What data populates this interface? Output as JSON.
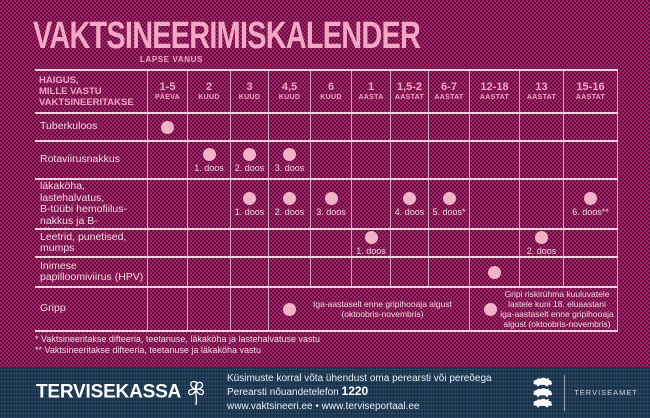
{
  "title": "VAKTSINEERIMISKALENDER",
  "table": {
    "age_axis_label": "LAPSE VANUS",
    "corner_label": "HAIGUS,\nMILLE VASTU\nVAKTSINEERITAKSE",
    "columns": [
      {
        "num": "1-5",
        "unit": "PÄEVA"
      },
      {
        "num": "2",
        "unit": "KUUD"
      },
      {
        "num": "3",
        "unit": "KUUD"
      },
      {
        "num": "4,5",
        "unit": "KUUD"
      },
      {
        "num": "6",
        "unit": "KUUD"
      },
      {
        "num": "1",
        "unit": "AASTA"
      },
      {
        "num": "1,5-2",
        "unit": "AASTAT"
      },
      {
        "num": "6-7",
        "unit": "AASTAT"
      },
      {
        "num": "12-18",
        "unit": "AASTAT"
      },
      {
        "num": "13",
        "unit": "AASTAT"
      },
      {
        "num": "15-16",
        "unit": "AASTAT"
      }
    ],
    "rows": [
      {
        "label": "Tuberkuloos",
        "dots": {
          "0": ""
        }
      },
      {
        "label": "Rotaviirusnakkus",
        "dots": {
          "1": "1. doos",
          "2": "2. doos",
          "3": "3. doos"
        }
      },
      {
        "label": "Difteeria, teetanus,\nläkaköha, lastehalvatus,\nB-tüübi hemofiilus-\nnakkus ja B-viirushepatiit",
        "dots": {
          "2": "1. doos",
          "3": "2. doos",
          "4": "3. doos",
          "6": "4. doos",
          "7": "5. doos*",
          "10": "6. doos**"
        }
      },
      {
        "label": "Leetrid, punetised,\nmumps",
        "dots": {
          "5": "1. doos",
          "9": "2. doos"
        }
      },
      {
        "label": "Inimese\npapilloomiviirus (HPV)",
        "dots": {
          "8": ""
        }
      },
      {
        "label": "Gripp",
        "merged": [
          {
            "start": 3,
            "span": 5,
            "text": "Iga-aastaselt enne gripihooaja algust\n(oktoobris-novembris)"
          },
          {
            "start": 8,
            "span": 3,
            "text": "Gripi riskirühma kuuluvatele\nlastele kuni 18. eluaastani\niga-aastaselt enne gripihooaja\nalgust (oktoobris-novembris)"
          }
        ]
      }
    ]
  },
  "footnotes": [
    "* Vaktsineeritakse difteeria, teetanuse, läkaköha ja lastehalvatuse vastu",
    "** Vaktsineeritakse difteeria, teetanuse ja läkaköha vastu"
  ],
  "footer": {
    "brand": "TERVISEKASSA",
    "contact_line1": "Küsimuste korral võta ühendust oma perearsti või pereõega",
    "contact_line2_prefix": "Perearsti nõuandetelefon ",
    "contact_phone": "1220",
    "links": "www.vaktsineeri.ee  •  www.terviseportaal.ee",
    "agency": "TERVISEAMET"
  },
  "colors": {
    "accent_pink": "#f2a7c6",
    "text_light": "#f1d7e2",
    "dot": "#f2b2ca",
    "grid_line": "#ecd3de",
    "background": "#8a1a54",
    "footer_bg": "#1e3a55"
  }
}
